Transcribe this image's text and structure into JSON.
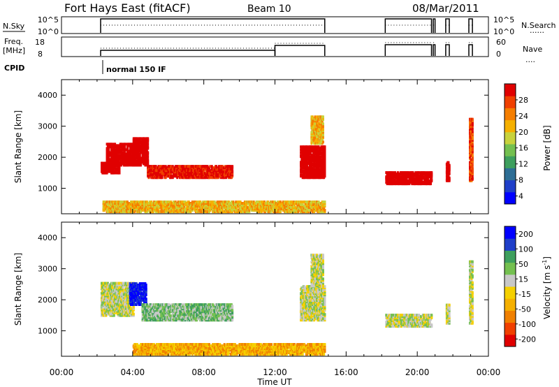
{
  "header": {
    "station": "Fort Hays East (fitACF)",
    "beam": "Beam 10",
    "date": "08/Mar/2011"
  },
  "strip_nsky": {
    "left_label": "N.Sky",
    "left_ticks": [
      "10^5",
      "10^0"
    ],
    "right_ticks": [
      "10^5",
      "10^0"
    ],
    "right_label": "N.Search",
    "right_marker": "......"
  },
  "strip_freq": {
    "left_label_1": "Freq.",
    "left_label_2": "[MHz]",
    "left_ticks": [
      "18",
      "8"
    ],
    "right_ticks": [
      "60",
      "0"
    ],
    "right_label": "Nave",
    "right_marker": "...."
  },
  "cpid": {
    "label": "CPID",
    "program": "normal 150 IF"
  },
  "chart_data": [
    {
      "type": "heatmap",
      "title": "",
      "xlabel": "Time UT",
      "ylabel": "Slant Range [km]",
      "x_ticks": [
        "00:00",
        "04:00",
        "08:00",
        "12:00",
        "16:00",
        "20:00",
        "00:00"
      ],
      "xlim_hours": [
        0,
        24
      ],
      "y_ticks": [
        "1000",
        "2000",
        "3000",
        "4000"
      ],
      "ylim_km": [
        180,
        4500
      ],
      "colorbar": {
        "label": "Power [dB]",
        "ticks": [
          "28",
          "24",
          "20",
          "16",
          "12",
          "8",
          "4"
        ],
        "range": [
          0,
          30
        ],
        "colors": [
          "#0000ff",
          "#1f3fc9",
          "#2e6e95",
          "#3e9f5e",
          "#74c050",
          "#c8d23c",
          "#f5b000",
          "#f57e00",
          "#f04000",
          "#e00000"
        ]
      },
      "regions": [
        {
          "t_start": 2.2,
          "t_end": 3.2,
          "r_start": 1450,
          "r_end": 1800,
          "level": 20
        },
        {
          "t_start": 2.5,
          "t_end": 4.0,
          "r_start": 1700,
          "r_end": 2400,
          "level": 10
        },
        {
          "t_start": 4.0,
          "t_end": 4.8,
          "r_start": 1700,
          "r_end": 2600,
          "level": 12
        },
        {
          "t_start": 4.8,
          "t_end": 9.6,
          "r_start": 1300,
          "r_end": 1700,
          "level": 9
        },
        {
          "t_start": 13.4,
          "t_end": 14.8,
          "r_start": 1300,
          "r_end": 2300,
          "level": 14
        },
        {
          "t_start": 14.0,
          "t_end": 14.7,
          "r_start": 2400,
          "r_end": 3300,
          "level": 6
        },
        {
          "t_start": 18.2,
          "t_end": 20.8,
          "r_start": 1100,
          "r_end": 1500,
          "level": 13
        },
        {
          "t_start": 21.6,
          "t_end": 21.8,
          "r_start": 1200,
          "r_end": 1800,
          "level": 12
        },
        {
          "t_start": 22.9,
          "t_end": 23.1,
          "r_start": 1200,
          "r_end": 3200,
          "level": 8
        },
        {
          "t_start": 2.3,
          "t_end": 14.8,
          "r_start": 200,
          "r_end": 550,
          "level": 6
        }
      ]
    },
    {
      "type": "heatmap",
      "title": "",
      "xlabel": "Time UT",
      "ylabel": "Slant Range [km]",
      "x_ticks": [
        "00:00",
        "04:00",
        "08:00",
        "12:00",
        "16:00",
        "20:00",
        "00:00"
      ],
      "xlim_hours": [
        0,
        24
      ],
      "y_ticks": [
        "1000",
        "2000",
        "3000",
        "4000"
      ],
      "ylim_km": [
        180,
        4500
      ],
      "colorbar": {
        "label_1": "Velocity",
        "label_2": "[m s",
        "label_exp": "-1",
        "label_3": "]",
        "ticks": [
          "200",
          "100",
          "50",
          "15",
          "-15",
          "-50",
          "-100",
          "-200"
        ],
        "range": [
          -250,
          250
        ],
        "colors": [
          "#e00000",
          "#f04000",
          "#f08000",
          "#f5b000",
          "#f5d000",
          "#c8c8c8",
          "#74c050",
          "#3e9f5e",
          "#1f3fc9",
          "#0000ff"
        ]
      },
      "regions": [
        {
          "t_start": 2.2,
          "t_end": 4.0,
          "r_start": 1450,
          "r_end": 2500,
          "level": 5
        },
        {
          "t_start": 3.8,
          "t_end": 4.7,
          "r_start": 1800,
          "r_end": 2500,
          "level": 9
        },
        {
          "t_start": 4.5,
          "t_end": 9.6,
          "r_start": 1300,
          "r_end": 1800,
          "level": 6
        },
        {
          "t_start": 13.4,
          "t_end": 14.8,
          "r_start": 1300,
          "r_end": 2400,
          "level": 5
        },
        {
          "t_start": 14.0,
          "t_end": 14.7,
          "r_start": 2400,
          "r_end": 3400,
          "level": 5
        },
        {
          "t_start": 18.2,
          "t_end": 20.8,
          "r_start": 1100,
          "r_end": 1500,
          "level": 5
        },
        {
          "t_start": 21.6,
          "t_end": 21.8,
          "r_start": 1200,
          "r_end": 1800,
          "level": 5
        },
        {
          "t_start": 22.9,
          "t_end": 23.1,
          "r_start": 1200,
          "r_end": 3200,
          "level": 5
        },
        {
          "t_start": 4.0,
          "t_end": 14.8,
          "r_start": 200,
          "r_end": 550,
          "level": 3
        }
      ]
    }
  ]
}
